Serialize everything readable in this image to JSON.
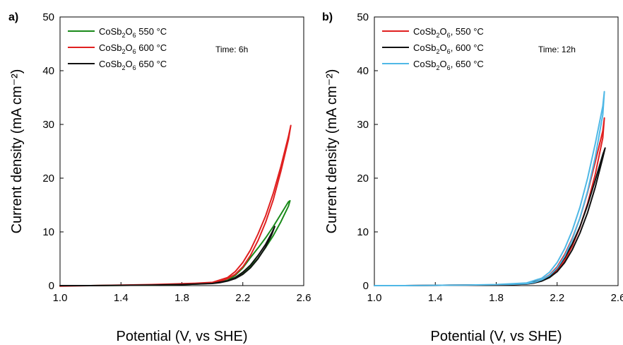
{
  "chart_data": [
    {
      "panel_label": "a)",
      "type": "line",
      "xlabel": "Potential (V, vs SHE)",
      "ylabel": "Current density (mA cm⁻²)",
      "xlim": [
        1.0,
        2.6
      ],
      "ylim": [
        0,
        50
      ],
      "xticks": [
        1.0,
        1.4,
        1.8,
        2.2,
        2.6
      ],
      "xtick_labels": [
        "1.0",
        "1.4",
        "1.8",
        "2.2",
        "2.6"
      ],
      "yticks": [
        0,
        10,
        20,
        30,
        40,
        50
      ],
      "ytick_labels": [
        "0",
        "10",
        "20",
        "30",
        "40",
        "50"
      ],
      "grid": false,
      "legend_position": "top-left",
      "annotation": "Time: 6h",
      "series": [
        {
          "name": "CoSb₂O₆ 550 °C",
          "legend_parts": [
            "CoSb",
            "2",
            "O",
            "6",
            " 550 °C"
          ],
          "color": "#1a8a1a",
          "x": [
            1.0,
            1.2,
            1.4,
            1.6,
            1.8,
            1.9,
            2.0,
            2.05,
            2.1,
            2.15,
            2.2,
            2.25,
            2.3,
            2.35,
            2.4,
            2.45,
            2.5,
            2.51,
            2.5,
            2.45,
            2.4,
            2.35,
            2.3,
            2.25,
            2.2,
            2.15,
            2.1,
            2.0,
            1.8
          ],
          "y": [
            0.0,
            0.0,
            0.05,
            0.1,
            0.2,
            0.3,
            0.45,
            0.6,
            0.9,
            1.4,
            2.2,
            3.5,
            5.1,
            7.1,
            9.3,
            11.9,
            14.8,
            15.8,
            15.6,
            13.3,
            11.0,
            8.9,
            7.0,
            5.2,
            3.3,
            1.9,
            1.0,
            0.5,
            0.2
          ]
        },
        {
          "name": "CoSb₂O₆ 600 °C",
          "legend_parts": [
            "CoSb",
            "2",
            "O",
            "6",
            " 600 °C"
          ],
          "color": "#e02020",
          "x": [
            1.0,
            1.2,
            1.4,
            1.6,
            1.8,
            1.9,
            2.0,
            2.05,
            2.1,
            2.15,
            2.2,
            2.25,
            2.3,
            2.35,
            2.4,
            2.45,
            2.5,
            2.515,
            2.5,
            2.45,
            2.4,
            2.35,
            2.3,
            2.25,
            2.2,
            2.15,
            2.1,
            2.0,
            1.8
          ],
          "y": [
            -0.1,
            0.0,
            0.1,
            0.2,
            0.35,
            0.45,
            0.6,
            0.8,
            1.3,
            2.1,
            3.5,
            5.6,
            8.4,
            11.8,
            16.0,
            21.3,
            27.2,
            29.8,
            27.8,
            22.2,
            17.2,
            13.0,
            9.6,
            6.6,
            4.3,
            2.6,
            1.5,
            0.6,
            0.3
          ]
        },
        {
          "name": "CoSb₂O₆ 650 °C",
          "legend_parts": [
            "CoSb",
            "2",
            "O",
            "6",
            " 650 °C"
          ],
          "color": "#111111",
          "x": [
            1.0,
            1.2,
            1.4,
            1.6,
            1.8,
            1.9,
            2.0,
            2.05,
            2.1,
            2.15,
            2.2,
            2.25,
            2.3,
            2.35,
            2.39,
            2.41,
            2.39,
            2.35,
            2.3,
            2.25,
            2.2,
            2.15,
            2.1,
            2.0,
            1.8
          ],
          "y": [
            0.0,
            0.0,
            0.05,
            0.1,
            0.2,
            0.3,
            0.4,
            0.55,
            0.85,
            1.3,
            2.1,
            3.3,
            5.0,
            7.2,
            9.5,
            11.0,
            9.8,
            7.7,
            5.6,
            3.8,
            2.5,
            1.5,
            0.9,
            0.4,
            0.2
          ]
        }
      ]
    },
    {
      "panel_label": "b)",
      "type": "line",
      "xlabel": "Potential (V, vs SHE)",
      "ylabel": "Current density (mA cm⁻²)",
      "xlim": [
        1.0,
        2.6
      ],
      "ylim": [
        0,
        50
      ],
      "xticks": [
        1.0,
        1.4,
        1.8,
        2.2,
        2.6
      ],
      "xtick_labels": [
        "1.0",
        "1.4",
        "1.8",
        "2.2",
        "2.6"
      ],
      "yticks": [
        0,
        10,
        20,
        30,
        40,
        50
      ],
      "ytick_labels": [
        "0",
        "10",
        "20",
        "30",
        "40",
        "50"
      ],
      "grid": false,
      "legend_position": "top-left",
      "annotation": "Time: 12h",
      "series": [
        {
          "name": "CoSb₂O₆, 550 °C",
          "legend_parts": [
            "CoSb",
            "2",
            "O",
            "6",
            ", 550 °C"
          ],
          "color": "#e02020",
          "x": [
            1.0,
            1.2,
            1.4,
            1.6,
            1.8,
            1.9,
            2.0,
            2.05,
            2.1,
            2.15,
            2.2,
            2.25,
            2.3,
            2.35,
            2.4,
            2.45,
            2.5,
            2.51,
            2.5,
            2.45,
            2.4,
            2.35,
            2.3,
            2.25,
            2.2,
            2.15,
            2.1,
            2.0,
            1.8
          ],
          "y": [
            0.0,
            0.0,
            0.05,
            0.1,
            0.15,
            0.2,
            0.3,
            0.5,
            0.9,
            1.6,
            2.8,
            4.7,
            7.4,
            10.9,
            15.3,
            20.7,
            27.5,
            31.2,
            28.8,
            23.0,
            17.4,
            12.6,
            8.8,
            5.8,
            3.5,
            2.0,
            1.1,
            0.4,
            0.15
          ]
        },
        {
          "name": "CoSb₂O₆, 600 °C",
          "legend_parts": [
            "CoSb",
            "2",
            "O",
            "6",
            ", 600 °C"
          ],
          "color": "#111111",
          "x": [
            1.0,
            1.2,
            1.4,
            1.6,
            1.8,
            1.9,
            2.0,
            2.05,
            2.1,
            2.15,
            2.2,
            2.25,
            2.3,
            2.35,
            2.4,
            2.45,
            2.5,
            2.515,
            2.5,
            2.45,
            2.4,
            2.35,
            2.3,
            2.25,
            2.2,
            2.15,
            2.1,
            2.0,
            1.8
          ],
          "y": [
            0.0,
            0.0,
            0.05,
            0.1,
            0.15,
            0.2,
            0.3,
            0.5,
            0.85,
            1.5,
            2.6,
            4.3,
            6.7,
            9.8,
            13.6,
            18.3,
            23.8,
            25.6,
            24.4,
            19.6,
            15.0,
            11.0,
            7.8,
            5.2,
            3.2,
            1.8,
            1.0,
            0.4,
            0.15
          ]
        },
        {
          "name": "CoSb₂O₆, 650 °C",
          "legend_parts": [
            "CoSb",
            "2",
            "O",
            "6",
            ", 650 °C"
          ],
          "color": "#4fb8e6",
          "x": [
            1.0,
            1.2,
            1.4,
            1.6,
            1.8,
            1.9,
            2.0,
            2.05,
            2.1,
            2.15,
            2.2,
            2.25,
            2.3,
            2.35,
            2.4,
            2.45,
            2.5,
            2.51,
            2.5,
            2.45,
            2.4,
            2.35,
            2.3,
            2.25,
            2.2,
            2.15,
            2.1,
            2.0,
            1.8
          ],
          "y": [
            0.0,
            0.0,
            0.05,
            0.1,
            0.2,
            0.25,
            0.35,
            0.6,
            1.1,
            1.9,
            3.3,
            5.5,
            8.6,
            12.6,
            17.6,
            23.9,
            31.8,
            36.1,
            33.4,
            26.4,
            20.0,
            14.6,
            10.3,
            6.9,
            4.3,
            2.5,
            1.4,
            0.5,
            0.2
          ]
        }
      ]
    }
  ]
}
